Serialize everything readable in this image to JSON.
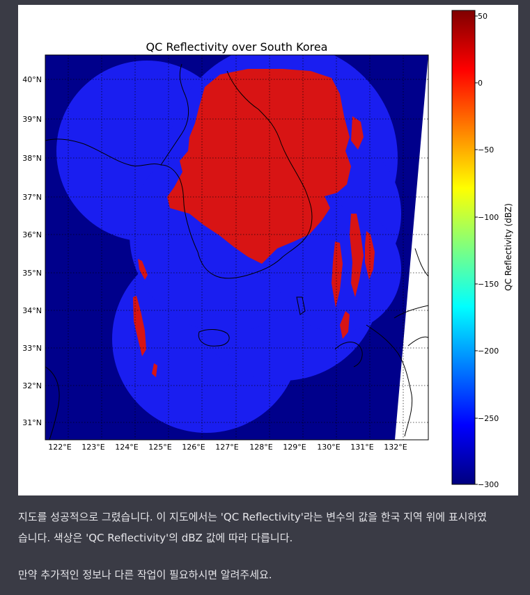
{
  "message": {
    "line1": "지도를 성공적으로 그렸습니다. 이 지도에서는 'QC Reflectivity'라는 변수의 값을 한국 지역 위에 표시하였",
    "line2": "습니다. 색상은 'QC Reflectivity'의 dBZ 값에 따라 다릅니다.",
    "line3": "만약 추가적인 정보나 다른 작업이 필요하시면 알려주세요."
  },
  "chart_data": {
    "type": "heatmap",
    "title": "QC Reflectivity over South Korea",
    "x_ticks": [
      "122°E",
      "123°E",
      "124°E",
      "125°E",
      "126°E",
      "127°E",
      "128°E",
      "129°E",
      "130°E",
      "131°E",
      "132°E"
    ],
    "y_ticks": [
      "40°N",
      "39°N",
      "38°N",
      "37°N",
      "36°N",
      "35°N",
      "34°N",
      "33°N",
      "32°N",
      "31°N"
    ],
    "xlim": [
      121.55,
      133.0
    ],
    "ylim": [
      30.55,
      40.65
    ],
    "grid": true,
    "colorbar": {
      "label": "QC Reflectivity (dBZ)",
      "ticks": [
        "50",
        "0",
        "−50",
        "−100",
        "−150",
        "−200",
        "−250",
        "−300"
      ],
      "range": [
        -300,
        55
      ]
    },
    "colors": {
      "background": "#00008b",
      "coverage": "#1a1ef0",
      "echo": "#d81414"
    }
  }
}
